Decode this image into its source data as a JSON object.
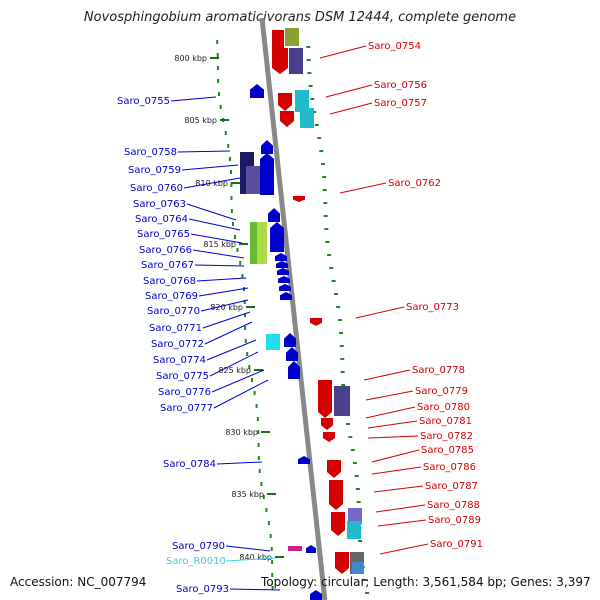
{
  "title": "Novosphingobium aromaticivorans DSM 12444, complete genome",
  "accession": "Accession: NC_007794",
  "topology": "Topology: circular; Length: 3,561,584 bp; Genes: 3,397",
  "colors": {
    "forward": "#d40000",
    "reverse": "#0000cc",
    "rna": "#44ccdd",
    "backbone": "#888888",
    "gc_ticks": "#228822"
  },
  "scale_ticks": [
    "800 kbp",
    "805 kbp",
    "810 kbp",
    "815 kbp",
    "820 kbp",
    "825 kbp",
    "830 kbp",
    "835 kbp",
    "840 kbp"
  ],
  "left_labels": [
    "Saro_0755",
    "Saro_0758",
    "Saro_0759",
    "Saro_0760",
    "Saro_0763",
    "Saro_0764",
    "Saro_0765",
    "Saro_0766",
    "Saro_0767",
    "Saro_0768",
    "Saro_0769",
    "Saro_0770",
    "Saro_0771",
    "Saro_0772",
    "Saro_0774",
    "Saro_0775",
    "Saro_0776",
    "Saro_0777",
    "Saro_0784",
    "Saro_0790",
    "Saro_R0010",
    "Saro_0793"
  ],
  "right_labels": [
    "Saro_0754",
    "Saro_0756",
    "Saro_0757",
    "Saro_0762",
    "Saro_0773",
    "Saro_0778",
    "Saro_0779",
    "Saro_0780",
    "Saro_0781",
    "Saro_0782",
    "Saro_0785",
    "Saro_0786",
    "Saro_0787",
    "Saro_0788",
    "Saro_0789",
    "Saro_0791"
  ]
}
